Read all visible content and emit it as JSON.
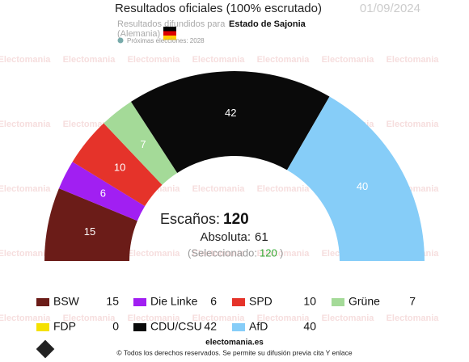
{
  "chart_data": {
    "type": "semicircle",
    "title": "Resultados oficiales (100% escrutado)",
    "date": "01/09/2024",
    "source_label": "Resultados difundidos para",
    "region": "Estado de Sajonia",
    "country": "(Alemania)",
    "next_election": "Próximas elecciones: 2028",
    "watermark": "Electomania",
    "seats_label": "Escaños:",
    "seats_total": 120,
    "majority_label": "Absoluta:",
    "majority": 61,
    "selected_label": "(Seleccionado:",
    "selected": 120,
    "selected_close": ")",
    "series": [
      {
        "name": "BSW",
        "color": "#6b1c18",
        "value": 15
      },
      {
        "name": "Die Linke",
        "color": "#a11ff2",
        "value": 6
      },
      {
        "name": "SPD",
        "color": "#e5332a",
        "value": 10
      },
      {
        "name": "Grüne",
        "color": "#a4da98",
        "value": 7
      },
      {
        "name": "FDP",
        "color": "#f5e100",
        "value": 0
      },
      {
        "name": "CDU/CSU",
        "color": "#0a0a0a",
        "value": 42
      },
      {
        "name": "AfD",
        "color": "#86cdf8",
        "value": 40
      }
    ],
    "site": "electomania.es",
    "copyright": "© Todos los derechos reservados. Se permite su difusión previa cita Y enlace"
  }
}
